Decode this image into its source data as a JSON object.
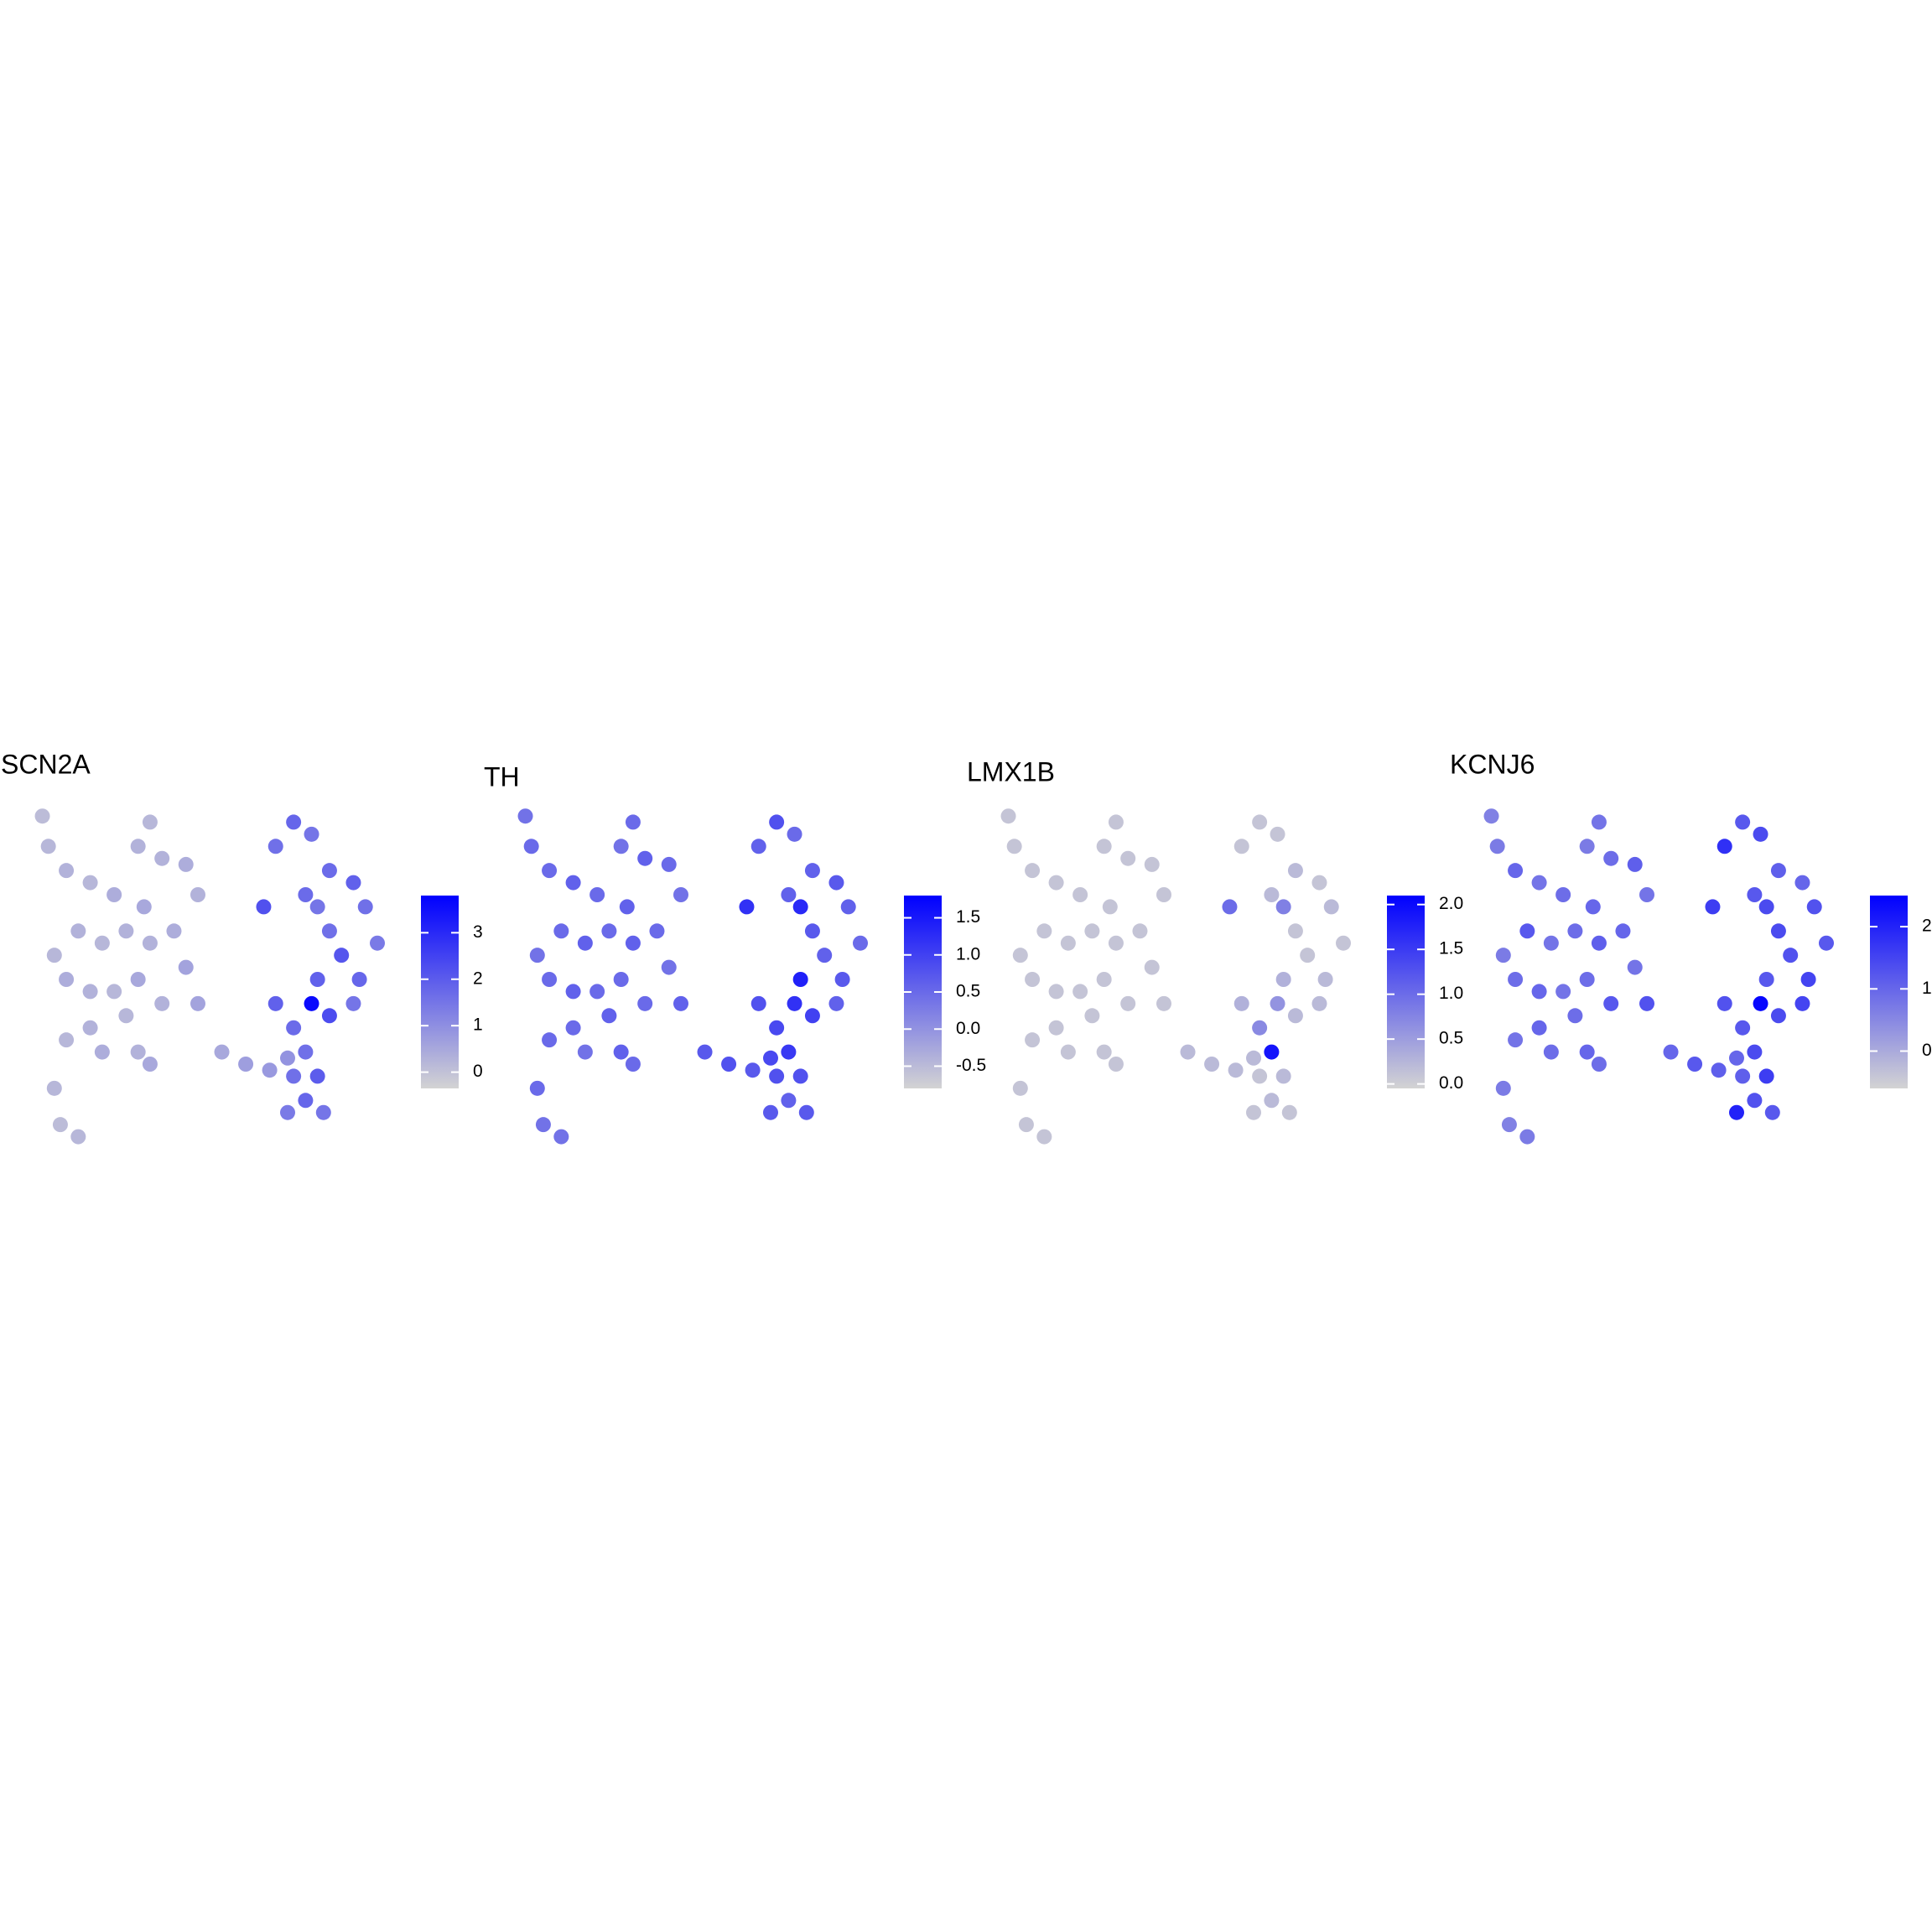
{
  "chart_data": [
    {
      "type": "scatter",
      "title": "SCN2A",
      "xlim": [
        0,
        300
      ],
      "ylim": [
        0,
        280
      ],
      "x": [
        20,
        25,
        40,
        60,
        80,
        100,
        110,
        120,
        140,
        150,
        105,
        90,
        70,
        50,
        30,
        40,
        60,
        80,
        100,
        110,
        130,
        140,
        120,
        90,
        60,
        40,
        70,
        100,
        30,
        35,
        110,
        150,
        170,
        190,
        210,
        225,
        215,
        230,
        245,
        260,
        280,
        290,
        300,
        285,
        270,
        250,
        240,
        205,
        260,
        280,
        215,
        230,
        240,
        250,
        255,
        240,
        230,
        225,
        260,
        250,
        50,
        245
      ],
      "y": [
        275,
        250,
        230,
        220,
        210,
        250,
        270,
        240,
        235,
        210,
        200,
        180,
        170,
        180,
        160,
        140,
        130,
        130,
        140,
        170,
        180,
        150,
        120,
        110,
        100,
        90,
        80,
        80,
        50,
        20,
        70,
        120,
        80,
        70,
        65,
        75,
        250,
        270,
        260,
        230,
        220,
        200,
        170,
        140,
        160,
        200,
        210,
        200,
        180,
        120,
        120,
        100,
        80,
        60,
        30,
        40,
        60,
        30,
        110,
        140,
        10,
        120
      ],
      "values": [
        0.1,
        0.2,
        0.3,
        0.2,
        0.4,
        0.3,
        0.2,
        0.3,
        0.4,
        0.3,
        0.5,
        0.3,
        0.2,
        0.3,
        0.2,
        0.4,
        0.3,
        0.2,
        0.5,
        0.3,
        0.4,
        0.6,
        0.3,
        0.2,
        0.3,
        0.2,
        0.4,
        0.3,
        0.2,
        0.1,
        0.5,
        0.6,
        0.5,
        0.7,
        0.8,
        0.9,
        1.6,
        1.8,
        1.5,
        1.7,
        1.9,
        1.6,
        1.4,
        1.8,
        2.1,
        1.5,
        1.7,
        2.2,
        1.6,
        1.5,
        1.9,
        1.7,
        1.6,
        2.0,
        1.5,
        1.8,
        1.6,
        1.4,
        2.3,
        1.9,
        0.2,
        3.6
      ],
      "clim": [
        -0.35,
        3.8
      ],
      "cticks": [
        0,
        1,
        2,
        3
      ],
      "low_color": "#d3d3d3",
      "high_color": "#0000ff"
    },
    {
      "type": "scatter",
      "title": "TH",
      "xlim": [
        0,
        300
      ],
      "ylim": [
        0,
        280
      ],
      "x": [
        20,
        25,
        40,
        60,
        80,
        100,
        110,
        120,
        140,
        150,
        105,
        90,
        70,
        50,
        30,
        40,
        60,
        80,
        100,
        110,
        130,
        140,
        120,
        90,
        60,
        40,
        70,
        100,
        30,
        35,
        110,
        150,
        170,
        190,
        210,
        225,
        215,
        230,
        245,
        260,
        280,
        290,
        300,
        285,
        270,
        250,
        240,
        205,
        260,
        280,
        215,
        230,
        240,
        250,
        255,
        240,
        230,
        225,
        260,
        250,
        50,
        245
      ],
      "y": [
        275,
        250,
        230,
        220,
        210,
        250,
        270,
        240,
        235,
        210,
        200,
        180,
        170,
        180,
        160,
        140,
        130,
        130,
        140,
        170,
        180,
        150,
        120,
        110,
        100,
        90,
        80,
        80,
        50,
        20,
        70,
        120,
        80,
        70,
        65,
        75,
        250,
        270,
        260,
        230,
        220,
        200,
        170,
        140,
        160,
        200,
        210,
        200,
        180,
        120,
        120,
        100,
        80,
        60,
        30,
        40,
        60,
        30,
        110,
        140,
        10,
        120
      ],
      "values": [
        0.4,
        0.5,
        0.5,
        0.6,
        0.5,
        0.4,
        0.5,
        0.6,
        0.5,
        0.4,
        0.6,
        0.5,
        0.6,
        0.5,
        0.4,
        0.5,
        0.6,
        0.5,
        0.5,
        0.6,
        0.5,
        0.4,
        0.5,
        0.6,
        0.5,
        0.5,
        0.4,
        0.6,
        0.5,
        0.4,
        0.5,
        0.6,
        0.7,
        0.8,
        0.7,
        0.9,
        0.6,
        0.8,
        0.5,
        0.6,
        0.7,
        0.6,
        0.5,
        0.7,
        0.6,
        1.3,
        0.6,
        1.2,
        0.7,
        0.6,
        0.8,
        0.9,
        1.1,
        0.8,
        0.7,
        0.6,
        0.8,
        0.7,
        1.0,
        1.4,
        0.4,
        1.2
      ],
      "clim": [
        -0.8,
        1.8
      ],
      "cticks": [
        -0.5,
        {
          "value": 0,
          "label": "0.0"
        },
        0.5,
        {
          "value": 1,
          "label": "1.0"
        },
        1.5
      ],
      "low_color": "#d3d3d3",
      "high_color": "#0000ff"
    },
    {
      "type": "scatter",
      "title": "LMX1B",
      "xlim": [
        0,
        300
      ],
      "ylim": [
        0,
        280
      ],
      "x": [
        20,
        25,
        40,
        60,
        80,
        100,
        110,
        120,
        140,
        150,
        105,
        90,
        70,
        50,
        30,
        40,
        60,
        80,
        100,
        110,
        130,
        140,
        120,
        90,
        60,
        40,
        70,
        100,
        30,
        35,
        110,
        150,
        170,
        190,
        210,
        225,
        215,
        230,
        245,
        260,
        280,
        290,
        300,
        285,
        270,
        250,
        240,
        205,
        260,
        280,
        215,
        230,
        240,
        250,
        255,
        240,
        230,
        225,
        260,
        250,
        50,
        245
      ],
      "y": [
        275,
        250,
        230,
        220,
        210,
        250,
        270,
        240,
        235,
        210,
        200,
        180,
        170,
        180,
        160,
        140,
        130,
        130,
        140,
        170,
        180,
        150,
        120,
        110,
        100,
        90,
        80,
        80,
        50,
        20,
        70,
        120,
        80,
        70,
        65,
        75,
        250,
        270,
        260,
        230,
        220,
        200,
        170,
        140,
        160,
        200,
        210,
        200,
        180,
        120,
        120,
        100,
        80,
        60,
        30,
        40,
        60,
        30,
        110,
        140,
        10,
        120
      ],
      "values": [
        0.1,
        0.1,
        0.1,
        0.1,
        0.1,
        0.1,
        0.1,
        0.1,
        0.1,
        0.1,
        0.1,
        0.1,
        0.1,
        0.1,
        0.1,
        0.1,
        0.1,
        0.1,
        0.1,
        0.1,
        0.1,
        0.1,
        0.1,
        0.1,
        0.1,
        0.1,
        0.1,
        0.1,
        0.1,
        0.1,
        0.1,
        0.1,
        0.2,
        0.2,
        0.2,
        0.2,
        0.1,
        0.1,
        0.1,
        0.2,
        0.1,
        0.2,
        0.1,
        0.2,
        0.1,
        0.8,
        0.2,
        1.0,
        0.1,
        0.2,
        0.3,
        0.7,
        1.9,
        0.2,
        0.1,
        0.2,
        0.1,
        0.1,
        0.2,
        0.3,
        0.1,
        0.6
      ],
      "clim": [
        -0.05,
        2.1
      ],
      "cticks": [
        {
          "value": 0,
          "label": "0.0"
        },
        0.5,
        {
          "value": 1,
          "label": "1.0"
        },
        1.5,
        {
          "value": 2,
          "label": "2.0"
        }
      ],
      "low_color": "#d3d3d3",
      "high_color": "#0000ff"
    },
    {
      "type": "scatter",
      "title": "KCNJ6",
      "xlim": [
        0,
        300
      ],
      "ylim": [
        0,
        280
      ],
      "x": [
        20,
        25,
        40,
        60,
        80,
        100,
        110,
        120,
        140,
        150,
        105,
        90,
        70,
        50,
        30,
        40,
        60,
        80,
        100,
        110,
        130,
        140,
        120,
        90,
        60,
        40,
        70,
        100,
        30,
        35,
        110,
        150,
        170,
        190,
        210,
        225,
        215,
        230,
        245,
        260,
        280,
        290,
        300,
        285,
        270,
        250,
        240,
        205,
        260,
        280,
        215,
        230,
        240,
        250,
        255,
        240,
        230,
        225,
        260,
        250,
        50,
        245
      ],
      "y": [
        275,
        250,
        230,
        220,
        210,
        250,
        270,
        240,
        235,
        210,
        200,
        180,
        170,
        180,
        160,
        140,
        130,
        130,
        140,
        170,
        180,
        150,
        120,
        110,
        100,
        90,
        80,
        80,
        50,
        20,
        70,
        120,
        80,
        70,
        65,
        75,
        250,
        270,
        260,
        230,
        220,
        200,
        170,
        140,
        160,
        200,
        210,
        200,
        180,
        120,
        120,
        100,
        80,
        60,
        30,
        40,
        60,
        30,
        110,
        140,
        10,
        120
      ],
      "values": [
        0.6,
        0.7,
        1.0,
        0.8,
        0.9,
        0.7,
        0.8,
        0.9,
        1.1,
        0.8,
        1.0,
        0.9,
        0.8,
        1.2,
        0.7,
        0.9,
        1.0,
        0.8,
        0.9,
        1.1,
        1.0,
        0.8,
        1.2,
        0.9,
        1.0,
        0.8,
        0.9,
        1.0,
        0.7,
        0.6,
        0.9,
        1.3,
        1.0,
        1.2,
        1.1,
        1.0,
        1.8,
        1.2,
        1.4,
        1.1,
        1.0,
        1.3,
        1.2,
        1.5,
        1.3,
        1.4,
        1.2,
        1.6,
        1.4,
        1.5,
        1.3,
        1.2,
        1.4,
        1.6,
        1.2,
        1.3,
        1.1,
        2.0,
        1.4,
        1.2,
        0.7,
        2.4
      ],
      "clim": [
        -0.6,
        2.5
      ],
      "cticks": [
        0,
        1,
        2
      ],
      "low_color": "#d3d3d3",
      "high_color": "#0000ff"
    }
  ]
}
